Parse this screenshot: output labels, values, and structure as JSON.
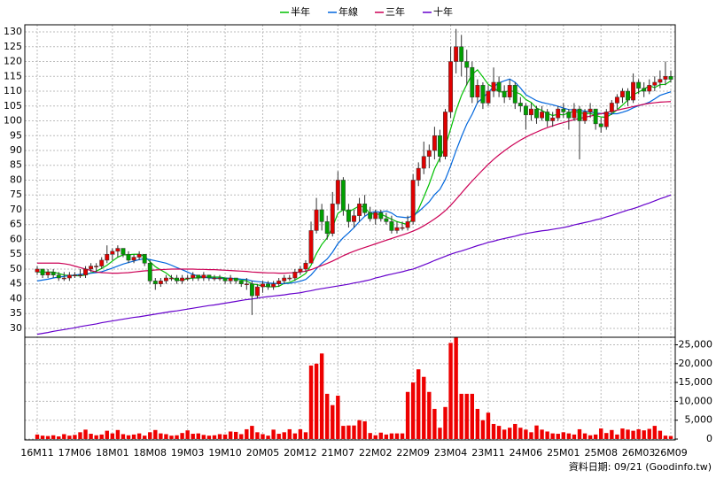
{
  "chart_data": {
    "type": "candlestick",
    "categories": [
      "16M11",
      null,
      null,
      null,
      null,
      null,
      null,
      "17M06",
      null,
      null,
      null,
      null,
      null,
      null,
      "18M01",
      null,
      null,
      null,
      null,
      null,
      null,
      "18M08",
      null,
      null,
      null,
      null,
      null,
      null,
      "19M03",
      null,
      null,
      null,
      null,
      null,
      null,
      "19M10",
      null,
      null,
      null,
      null,
      null,
      null,
      "20M05",
      null,
      null,
      null,
      null,
      null,
      null,
      "20M12",
      null,
      null,
      null,
      null,
      null,
      null,
      "21M07",
      null,
      null,
      null,
      null,
      null,
      null,
      "22M02",
      null,
      null,
      null,
      null,
      null,
      null,
      "22M09",
      null,
      null,
      null,
      null,
      null,
      null,
      "23M04",
      null,
      null,
      null,
      null,
      null,
      null,
      "23M11",
      null,
      null,
      null,
      null,
      null,
      null,
      "24M06",
      null,
      null,
      null,
      null,
      null,
      null,
      "25M01",
      null,
      null,
      null,
      null,
      null,
      null,
      "25M08",
      null,
      null,
      null,
      null,
      null,
      null,
      "26M03",
      null,
      null,
      null,
      null,
      null,
      "26M09"
    ],
    "ohlc": [
      [
        49,
        51,
        48,
        50
      ],
      [
        50,
        50,
        47,
        48
      ],
      [
        48,
        50,
        47,
        49
      ],
      [
        49,
        50,
        47,
        48
      ],
      [
        48,
        49,
        46,
        47
      ],
      [
        47,
        49,
        46,
        47
      ],
      [
        47,
        49,
        46,
        48
      ],
      [
        48,
        49,
        47,
        48
      ],
      [
        48,
        50,
        47,
        48
      ],
      [
        48,
        51,
        47,
        50
      ],
      [
        50,
        52,
        49,
        51
      ],
      [
        51,
        52,
        49,
        51
      ],
      [
        51,
        54,
        50,
        53
      ],
      [
        53,
        58,
        52,
        55
      ],
      [
        55,
        57,
        53,
        56
      ],
      [
        56,
        58,
        54,
        57
      ],
      [
        57,
        57,
        54,
        55
      ],
      [
        55,
        56,
        52,
        53
      ],
      [
        53,
        55,
        52,
        54
      ],
      [
        54,
        56,
        53,
        55
      ],
      [
        55,
        55,
        51,
        52
      ],
      [
        52,
        53,
        45,
        46
      ],
      [
        46,
        47,
        43,
        45
      ],
      [
        45,
        47,
        44,
        46
      ],
      [
        46,
        48,
        45,
        47
      ],
      [
        47,
        48,
        46,
        47
      ],
      [
        47,
        48,
        45,
        46
      ],
      [
        46,
        48,
        45,
        47
      ],
      [
        47,
        48,
        46,
        47
      ],
      [
        47,
        49,
        46,
        48
      ],
      [
        48,
        48,
        46,
        47
      ],
      [
        47,
        49,
        46,
        48
      ],
      [
        48,
        48,
        46,
        47
      ],
      [
        47,
        48,
        46,
        47
      ],
      [
        47,
        48,
        46,
        47
      ],
      [
        47,
        47,
        45,
        46
      ],
      [
        46,
        48,
        45,
        47
      ],
      [
        47,
        47,
        45,
        46
      ],
      [
        46,
        46,
        44,
        45
      ],
      [
        45,
        47,
        43,
        45
      ],
      [
        45,
        46,
        34.5,
        41
      ],
      [
        41,
        45,
        40,
        44
      ],
      [
        44,
        46,
        42,
        45
      ],
      [
        45,
        46,
        43,
        44
      ],
      [
        44,
        46,
        43,
        45
      ],
      [
        45,
        47,
        44,
        46
      ],
      [
        46,
        48,
        45,
        47
      ],
      [
        47,
        48,
        46,
        47
      ],
      [
        47,
        50,
        46,
        49
      ],
      [
        49,
        51,
        48,
        50
      ],
      [
        50,
        53,
        49,
        52
      ],
      [
        52,
        66,
        52,
        63
      ],
      [
        63,
        74,
        62,
        70
      ],
      [
        70,
        72,
        63,
        66
      ],
      [
        66,
        68,
        60,
        62
      ],
      [
        62,
        76,
        61,
        72
      ],
      [
        72,
        83,
        70,
        80
      ],
      [
        80,
        81,
        68,
        70
      ],
      [
        70,
        72,
        64,
        66
      ],
      [
        66,
        70,
        64,
        68
      ],
      [
        68,
        74,
        66,
        72
      ],
      [
        72,
        75,
        68,
        69
      ],
      [
        69,
        71,
        66,
        67
      ],
      [
        67,
        70,
        65,
        69
      ],
      [
        69,
        70,
        66,
        67
      ],
      [
        67,
        69,
        65,
        66
      ],
      [
        66,
        68,
        62,
        63
      ],
      [
        63,
        66,
        62,
        64
      ],
      [
        64,
        66,
        63,
        64
      ],
      [
        64,
        68,
        63,
        66
      ],
      [
        66,
        82,
        65,
        80
      ],
      [
        80,
        86,
        78,
        84
      ],
      [
        84,
        93,
        82,
        88
      ],
      [
        88,
        92,
        84,
        90
      ],
      [
        90,
        98,
        87,
        95
      ],
      [
        95,
        97,
        86,
        88
      ],
      [
        88,
        104,
        87,
        103
      ],
      [
        103,
        125,
        101,
        120
      ],
      [
        120,
        131,
        116,
        125
      ],
      [
        125,
        129,
        115,
        120
      ],
      [
        120,
        124,
        112,
        118
      ],
      [
        118,
        120,
        106,
        108
      ],
      [
        108,
        114,
        106,
        112
      ],
      [
        112,
        113,
        104,
        106
      ],
      [
        106,
        112,
        105,
        110
      ],
      [
        110,
        118,
        108,
        113
      ],
      [
        113,
        115,
        108,
        110
      ],
      [
        110,
        112,
        106,
        108
      ],
      [
        108,
        114,
        107,
        112
      ],
      [
        112,
        113,
        104,
        106
      ],
      [
        106,
        108,
        103,
        105
      ],
      [
        105,
        106,
        97,
        102
      ],
      [
        102,
        106,
        100,
        104
      ],
      [
        104,
        105,
        99,
        101
      ],
      [
        101,
        105,
        100,
        103
      ],
      [
        103,
        104,
        98,
        100
      ],
      [
        100,
        103,
        98,
        101
      ],
      [
        101,
        105,
        100,
        104
      ],
      [
        104,
        106,
        101,
        103
      ],
      [
        103,
        104,
        97,
        101
      ],
      [
        101,
        106,
        100,
        104
      ],
      [
        104,
        105,
        87,
        100
      ],
      [
        100,
        104,
        99,
        103
      ],
      [
        103,
        106,
        101,
        104
      ],
      [
        104,
        104,
        97,
        99
      ],
      [
        99,
        101,
        96,
        98
      ],
      [
        98,
        104,
        97,
        103
      ],
      [
        103,
        107,
        102,
        106
      ],
      [
        106,
        109,
        104,
        108
      ],
      [
        108,
        111,
        106,
        110
      ],
      [
        110,
        111,
        105,
        107
      ],
      [
        107,
        116,
        106,
        113
      ],
      [
        113,
        114,
        109,
        111
      ],
      [
        111,
        113,
        108,
        110
      ],
      [
        110,
        114,
        109,
        112
      ],
      [
        112,
        115,
        110,
        113
      ],
      [
        113,
        117,
        111,
        114
      ],
      [
        114,
        120,
        112,
        115
      ],
      [
        115,
        117,
        113,
        114
      ]
    ],
    "up_color": "#e00000",
    "down_color": "#00a000",
    "series": [
      {
        "name": "半年",
        "color": "#00c000",
        "values": [
          49,
          49,
          49,
          49,
          48.5,
          48,
          47.8,
          47.8,
          47.7,
          48,
          48.7,
          49.3,
          50.2,
          51.3,
          52.7,
          54,
          54.8,
          54.8,
          55,
          55,
          54.3,
          52.5,
          50.8,
          49.7,
          48.7,
          47.2,
          46.2,
          46.3,
          46.7,
          47,
          47,
          47.2,
          47.3,
          47.3,
          47.3,
          47,
          46.8,
          46.7,
          46.3,
          46,
          45,
          44.7,
          44.3,
          44,
          44,
          44.2,
          45.2,
          45.5,
          46.3,
          47.3,
          48.5,
          51.3,
          55.2,
          58.3,
          60.5,
          64.2,
          68.8,
          70,
          69.3,
          70.3,
          71.3,
          70.8,
          68.7,
          68.5,
          68.5,
          67.7,
          66.8,
          66,
          65.5,
          65,
          67.2,
          70.2,
          74.3,
          78.7,
          83.8,
          87.5,
          91.3,
          97.3,
          103.5,
          108.5,
          112.3,
          115.7,
          117.2,
          114.8,
          112.3,
          111.2,
          109.8,
          109.7,
          110.2,
          109.8,
          109,
          107.2,
          106.2,
          104.3,
          103.5,
          102.5,
          101.8,
          102.2,
          102,
          102.7,
          103.3,
          102.7,
          102.5,
          102.5,
          101.8,
          101.3,
          101.2,
          102.3,
          103.7,
          105.3,
          107,
          108.8,
          109.7,
          110.7,
          111.8,
          111.2,
          112.2,
          112.3,
          113.5
        ]
      },
      {
        "name": "年線",
        "color": "#0066dd",
        "values": [
          46,
          46.3,
          46.6,
          47,
          47.3,
          47.5,
          47.8,
          48,
          48.2,
          48.4,
          48.6,
          48.8,
          49.1,
          49.7,
          50.3,
          51,
          51.7,
          52.2,
          52.7,
          53.2,
          53.5,
          53.2,
          52.8,
          52.4,
          52,
          51.3,
          50.5,
          49.8,
          49,
          48.2,
          47.6,
          47.3,
          47,
          46.9,
          46.9,
          46.9,
          46.9,
          46.8,
          46.6,
          46.5,
          46,
          45.8,
          45.6,
          45.3,
          45.2,
          45.1,
          45.1,
          45.2,
          45.5,
          45.9,
          46.5,
          48,
          50.1,
          51.9,
          53.4,
          55.7,
          58.6,
          60.6,
          62.2,
          64,
          66,
          67.8,
          69,
          69.4,
          69.2,
          69.6,
          68.9,
          67.7,
          67.5,
          67.3,
          68,
          69.3,
          71,
          72.7,
          75.1,
          76.9,
          80.2,
          84.8,
          89.9,
          94.6,
          98.9,
          102.2,
          106.2,
          107.8,
          109.6,
          111.5,
          112.8,
          113.5,
          114.1,
          113,
          111.1,
          108.8,
          107.8,
          106.8,
          106.2,
          105.8,
          105.4,
          104.9,
          104.3,
          103.8,
          103.7,
          103.5,
          103.3,
          103,
          102.6,
          102.5,
          102.3,
          102.4,
          102.4,
          102.9,
          103.5,
          104.4,
          105.1,
          105.6,
          106.3,
          107.4,
          108.6,
          109.2,
          109.8
        ]
      },
      {
        "name": "三年",
        "color": "#cc0055",
        "values": [
          52,
          52,
          52,
          52,
          52,
          51.8,
          51.5,
          51,
          50.5,
          50,
          49.5,
          49,
          48.8,
          48.7,
          48.6,
          48.6,
          48.7,
          48.8,
          49,
          49.2,
          49.4,
          49.5,
          49.7,
          49.8,
          49.9,
          50,
          50,
          50,
          50,
          50,
          49.9,
          49.9,
          49.8,
          49.8,
          49.7,
          49.6,
          49.5,
          49.4,
          49.3,
          49.2,
          49,
          48.9,
          48.8,
          48.7,
          48.7,
          48.6,
          48.6,
          48.7,
          48.8,
          49,
          49.3,
          49.8,
          50.5,
          51.2,
          51.9,
          52.7,
          53.6,
          54.5,
          55.3,
          56,
          56.7,
          57.3,
          57.9,
          58.5,
          59.1,
          59.7,
          60.3,
          60.9,
          61.5,
          62.1,
          62.8,
          63.6,
          64.6,
          65.7,
          66.9,
          68.2,
          69.7,
          71.5,
          73.5,
          75.6,
          77.7,
          79.7,
          81.6,
          83.5,
          85.3,
          87,
          88.5,
          89.9,
          91.2,
          92.4,
          93.5,
          94.5,
          95.4,
          96.2,
          97,
          97.7,
          98.3,
          98.9,
          99.4,
          99.9,
          100.4,
          100.8,
          101.2,
          101.6,
          102,
          102.4,
          102.8,
          103.2,
          103.6,
          104,
          104.4,
          104.8,
          105.2,
          105.6,
          105.9,
          106.1,
          106.3,
          106.4,
          106.5
        ]
      },
      {
        "name": "十年",
        "color": "#6600cc",
        "values": [
          28,
          28.3,
          28.6,
          29,
          29.3,
          29.6,
          29.9,
          30.2,
          30.6,
          30.9,
          31.2,
          31.5,
          31.9,
          32.2,
          32.5,
          32.8,
          33.1,
          33.4,
          33.7,
          33.9,
          34.2,
          34.5,
          34.8,
          35.1,
          35.4,
          35.7,
          35.9,
          36.2,
          36.5,
          36.8,
          37.1,
          37.4,
          37.7,
          37.9,
          38.2,
          38.5,
          38.8,
          39.1,
          39.4,
          39.7,
          39.9,
          40.2,
          40.5,
          40.7,
          40.9,
          41.1,
          41.3,
          41.6,
          41.8,
          42,
          42.4,
          42.7,
          43.1,
          43.4,
          43.7,
          44,
          44.3,
          44.6,
          44.9,
          45.3,
          45.6,
          46,
          46.4,
          47,
          47.4,
          47.9,
          48.3,
          48.7,
          49.1,
          49.6,
          50,
          50.7,
          51.4,
          52.1,
          52.9,
          53.6,
          54.3,
          55,
          55.6,
          56.1,
          56.7,
          57.3,
          57.9,
          58.4,
          59,
          59.4,
          59.9,
          60.3,
          60.7,
          61.1,
          61.6,
          62,
          62.3,
          62.6,
          62.9,
          63.1,
          63.4,
          63.7,
          64,
          64.4,
          64.9,
          65.3,
          65.7,
          66.1,
          66.6,
          67,
          67.6,
          68.1,
          68.7,
          69.3,
          69.9,
          70.4,
          71,
          71.7,
          72.3,
          73,
          73.7,
          74.3,
          75
        ]
      }
    ],
    "ylim": [
      27,
      132.4
    ],
    "yticks": [
      30,
      35,
      40,
      45,
      50,
      55,
      60,
      65,
      70,
      75,
      80,
      85,
      90,
      95,
      100,
      105,
      110,
      115,
      120,
      125,
      130
    ],
    "grid": true,
    "volume": {
      "color": "#ee0000",
      "values": [
        1200,
        900,
        800,
        1000,
        700,
        1300,
        900,
        1100,
        1800,
        2500,
        1400,
        1000,
        1200,
        2200,
        1500,
        2400,
        1300,
        1000,
        1200,
        1500,
        900,
        1800,
        2400,
        1500,
        1300,
        900,
        1000,
        1600,
        2300,
        1400,
        1500,
        1100,
        900,
        1000,
        1300,
        1200,
        2000,
        1900,
        1300,
        2600,
        3500,
        1800,
        1300,
        900,
        2500,
        1400,
        1800,
        2600,
        1500,
        2600,
        1800,
        19500,
        20000,
        22700,
        12000,
        9000,
        11500,
        3500,
        3600,
        3600,
        5000,
        4700,
        1600,
        1000,
        1700,
        1200,
        1500,
        1500,
        1500,
        12500,
        15000,
        18500,
        16500,
        12500,
        8000,
        3000,
        8500,
        25500,
        26900,
        12000,
        12000,
        12000,
        8000,
        5000,
        7000,
        4000,
        3500,
        2500,
        3000,
        4000,
        3000,
        2500,
        1800,
        3600,
        2500,
        2000,
        1500,
        1400,
        1800,
        1500,
        1200,
        2600,
        1500,
        1000,
        1200,
        2800,
        1600,
        2400,
        1200,
        2800,
        2500,
        2200,
        2600,
        2300,
        2700,
        3500,
        2200,
        900,
        800
      ],
      "ylim": [
        0,
        27000
      ],
      "yticks": [
        0,
        {
          "value": 5000,
          "label": "5,000"
        },
        {
          "value": 10000,
          "label": "10,000"
        },
        {
          "value": 15000,
          "label": "15,000"
        },
        {
          "value": 20000,
          "label": "20,000"
        },
        {
          "value": 25000,
          "label": "25,000"
        }
      ]
    },
    "footnote": "資料日期: 09/21 (Goodinfo.tw)"
  }
}
